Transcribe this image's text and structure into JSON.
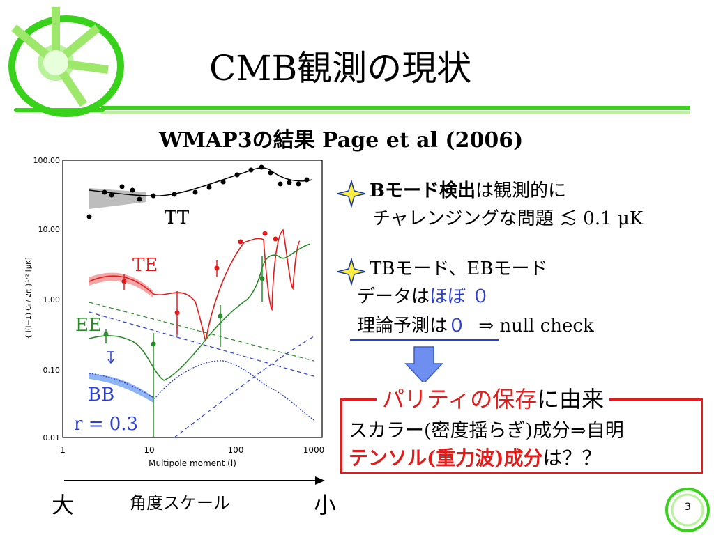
{
  "slide": {
    "title": "CMB観測の現状",
    "subtitle": "WMAP3の結果  Page et al (2006)",
    "page_number": "3"
  },
  "plot": {
    "y_axis_label": "{ l(l+1) Cₗ / 2π }¹ᐟ²   [μK]",
    "x_axis_label": "Multipole moment (l)",
    "y_ticks": [
      "100.00",
      "10.00",
      "1.00",
      "0.10",
      "0.01"
    ],
    "x_ticks": [
      "1",
      "10",
      "100",
      "1000"
    ],
    "labels": {
      "tt": "TT",
      "te": "TE",
      "ee": "EE",
      "bb": "BB",
      "r": "r = 0.3"
    }
  },
  "bullets": {
    "b1_line1_bold": "Bモード検出",
    "b1_line1_rest": "は観測的に",
    "b1_line2": "チャレンジングな問題",
    "b1_limit": "≲ 0.1 μK",
    "b2_line1": "TBモード、EBモード",
    "b2_line2_a": "データは",
    "b2_line2_b": "ほぼ ０",
    "b2_line3_a": "理論予測は",
    "b2_line3_b": "０",
    "b2_line3_c": "⇒ null check"
  },
  "box": {
    "heading_red": "パリティの保存",
    "heading_black": "に由来",
    "line1": "スカラー(密度揺らぎ)成分⇒自明",
    "line2_red": "テンソル(重力波)成分",
    "line2_black": "は？？"
  },
  "angular_axis": {
    "left": "大",
    "middle": "角度スケール",
    "right": "小"
  },
  "colors": {
    "accent_green": "#39d21a",
    "red": "#e31b1b",
    "blue": "#2b3fd6",
    "arrow_blue": "#6f8ff0"
  }
}
